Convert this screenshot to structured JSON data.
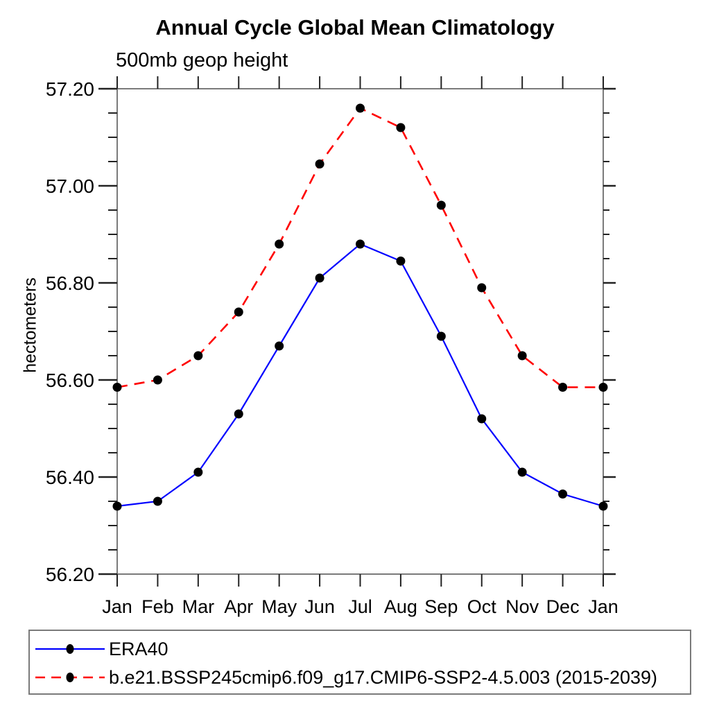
{
  "title": "Annual Cycle Global Mean Climatology",
  "subtitle": "500mb geop height",
  "chart_data": {
    "type": "line",
    "title": "Annual Cycle Global Mean Climatology",
    "subtitle": "500mb geop height",
    "xlabel": "",
    "ylabel": "hectometers",
    "x_categories": [
      "Jan",
      "Feb",
      "Mar",
      "Apr",
      "May",
      "Jun",
      "Jul",
      "Aug",
      "Sep",
      "Oct",
      "Nov",
      "Dec",
      "Jan"
    ],
    "ylim": [
      56.2,
      57.2
    ],
    "y_tick_labels": [
      "57.20",
      "57.00",
      "56.80",
      "56.60",
      "56.40",
      "56.20"
    ],
    "y_major_tick_step": 0.2,
    "y_minor_tick_step": 0.05,
    "grid": false,
    "legend_position": "bottom-box",
    "frame_color": "#7a7a7a",
    "tick_color": "#222222",
    "series": [
      {
        "name": "ERA40",
        "line_color": "#0000ff",
        "line_style": "solid",
        "marker": "filled-circle",
        "marker_color": "#000000",
        "values": [
          56.34,
          56.35,
          56.41,
          56.53,
          56.67,
          56.81,
          56.88,
          56.845,
          56.69,
          56.52,
          56.41,
          56.365,
          56.34
        ]
      },
      {
        "name": "b.e21.BSSP245cmip6.f09_g17.CMIP6-SSP2-4.5.003 (2015-2039)",
        "line_color": "#ff0000",
        "line_style": "dashed",
        "marker": "filled-circle",
        "marker_color": "#000000",
        "values": [
          56.585,
          56.6,
          56.65,
          56.74,
          56.88,
          57.045,
          57.16,
          57.12,
          56.96,
          56.79,
          56.65,
          56.585,
          56.585
        ]
      }
    ]
  }
}
